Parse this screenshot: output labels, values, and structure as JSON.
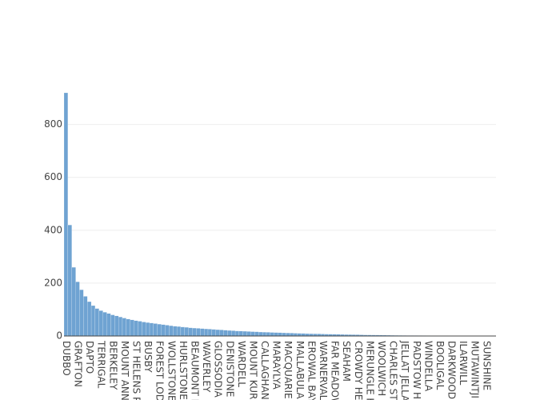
{
  "chart_data": {
    "type": "bar",
    "categories": [
      "DUBBO",
      null,
      null,
      "GRAFTON",
      null,
      null,
      "DAPTO",
      null,
      null,
      "TERRIGAL",
      null,
      null,
      "BERKELEY",
      null,
      null,
      "MOUNT ANN",
      null,
      null,
      "ST HELENS PA",
      null,
      null,
      "BUSBY",
      null,
      null,
      "FOREST LODG",
      null,
      null,
      "WOLLSTONE",
      null,
      null,
      "HURLSTONE",
      null,
      null,
      "BEAUMONT H",
      null,
      null,
      "WAVERLEY",
      null,
      null,
      "GLOSSODIA",
      null,
      null,
      "DENISTONE",
      null,
      null,
      "WARDELL",
      null,
      null,
      "MOUNT KURI",
      null,
      null,
      "CALLAGHAN",
      null,
      null,
      "MARAYLYA",
      null,
      null,
      "MACQUARIE",
      null,
      null,
      "MALLABULA",
      null,
      null,
      "EROWAL BAY",
      null,
      null,
      "WARNERVALE",
      null,
      null,
      "FAR MEADOW",
      null,
      null,
      "SEAHAM",
      null,
      null,
      "CROWDY HEA",
      null,
      null,
      "MERUNGLE H",
      null,
      null,
      "WOOLWICH",
      null,
      null,
      "CHARLES STU",
      null,
      null,
      "JELLAT JELLAT",
      null,
      null,
      "PADSTOW HE",
      null,
      null,
      "WINDELLA",
      null,
      null,
      "BOOLIGAL",
      null,
      null,
      "DARKWOOD",
      null,
      null,
      "ILARWILL",
      null,
      null,
      "MUTAWINTJI",
      null,
      null,
      "SUNSHINE",
      null,
      null
    ],
    "values": [
      920,
      420,
      260,
      205,
      175,
      150,
      130,
      115,
      104,
      96,
      90,
      85,
      80,
      76,
      72,
      68,
      64,
      61,
      58,
      56,
      53,
      51,
      49,
      47,
      45,
      43,
      41,
      39,
      37,
      36,
      34,
      33,
      31,
      30,
      29,
      28,
      27,
      26,
      25,
      24,
      23,
      22,
      21,
      20,
      19,
      18.5,
      18,
      17,
      16.5,
      16,
      15,
      14.5,
      14,
      13.5,
      13,
      12.5,
      12,
      11.5,
      11,
      10.5,
      10,
      9.5,
      9,
      8.7,
      8.3,
      8,
      7.6,
      7.3,
      7,
      6.6,
      6.3,
      6,
      5.7,
      5.4,
      5.1,
      4.8,
      4.5,
      4.2,
      4,
      3.8,
      3.6,
      3.4,
      3.2,
      3,
      2.8,
      2.6,
      2.4,
      2.2,
      2,
      2,
      1.9,
      1.8,
      1.7,
      1.6,
      1.5,
      1.4,
      1.3,
      1.2,
      1.1,
      1,
      1,
      1,
      1,
      1,
      1,
      1,
      1,
      1,
      1,
      1,
      1
    ],
    "color": "#6fa3d2",
    "ylim": [
      0,
      920
    ],
    "yticks": [
      0,
      200,
      400,
      600,
      800
    ],
    "grid": true
  }
}
